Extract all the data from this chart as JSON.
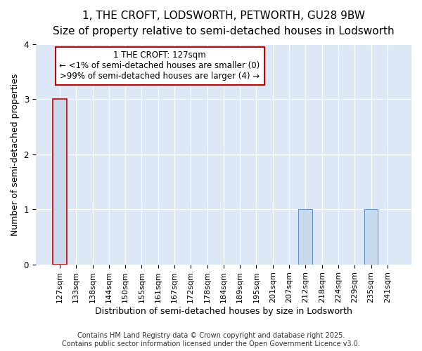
{
  "title_line1": "1, THE CROFT, LODSWORTH, PETWORTH, GU28 9BW",
  "title_line2": "Size of property relative to semi-detached houses in Lodsworth",
  "xlabel": "Distribution of semi-detached houses by size in Lodsworth",
  "ylabel": "Number of semi-detached properties",
  "categories": [
    "127sqm",
    "133sqm",
    "138sqm",
    "144sqm",
    "150sqm",
    "155sqm",
    "161sqm",
    "167sqm",
    "172sqm",
    "178sqm",
    "184sqm",
    "189sqm",
    "195sqm",
    "201sqm",
    "207sqm",
    "212sqm",
    "218sqm",
    "224sqm",
    "229sqm",
    "235sqm",
    "241sqm"
  ],
  "values": [
    3,
    0,
    0,
    0,
    0,
    0,
    0,
    0,
    0,
    0,
    0,
    0,
    0,
    0,
    0,
    1,
    0,
    0,
    0,
    1,
    0
  ],
  "bar_color": "#c8d9ec",
  "bar_edge_color": "#5a8fc2",
  "highlight_bar_index": 0,
  "highlight_color": "#c8d9ec",
  "highlight_edge_color": "#cc0000",
  "annotation_line1": "1 THE CROFT: 127sqm",
  "annotation_line2": "← <1% of semi-detached houses are smaller (0)",
  "annotation_line3": ">99% of semi-detached houses are larger (4) →",
  "annotation_box_color": "#cc0000",
  "ylim": [
    0,
    4
  ],
  "yticks": [
    0,
    1,
    2,
    3,
    4
  ],
  "figure_background_color": "#ffffff",
  "plot_background_color": "#dce8f5",
  "grid_color": "#ffffff",
  "footer_line1": "Contains HM Land Registry data © Crown copyright and database right 2025.",
  "footer_line2": "Contains public sector information licensed under the Open Government Licence v3.0.",
  "title_fontsize": 11,
  "subtitle_fontsize": 9.5,
  "axis_label_fontsize": 9,
  "tick_fontsize": 8,
  "annotation_fontsize": 8.5,
  "footer_fontsize": 7
}
